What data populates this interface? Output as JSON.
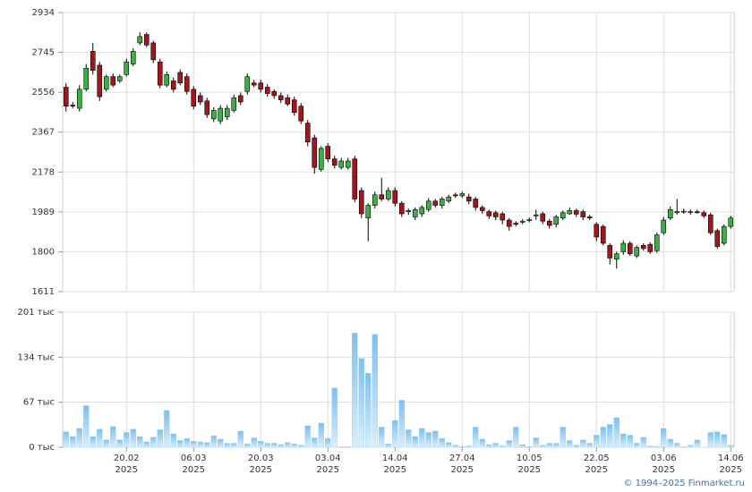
{
  "chart_data": [
    {
      "type": "candlestick",
      "categories": [
        null,
        null,
        null,
        null,
        null,
        null,
        null,
        null,
        null,
        "20.02\n2025",
        null,
        null,
        null,
        null,
        null,
        null,
        null,
        null,
        null,
        "06.03\n2025",
        null,
        null,
        null,
        null,
        null,
        null,
        null,
        null,
        null,
        "20.03\n2025",
        null,
        null,
        null,
        null,
        null,
        null,
        null,
        null,
        null,
        "03.04\n2025",
        null,
        null,
        null,
        null,
        null,
        null,
        null,
        null,
        null,
        "14.04\n2025",
        null,
        null,
        null,
        null,
        null,
        null,
        null,
        null,
        null,
        "27.04\n2025",
        null,
        null,
        null,
        null,
        null,
        null,
        null,
        null,
        null,
        "10.05\n2025",
        null,
        null,
        null,
        null,
        null,
        null,
        null,
        null,
        null,
        "22.05\n2025",
        null,
        null,
        null,
        null,
        null,
        null,
        null,
        null,
        null,
        "03.06\n2025",
        null,
        null,
        null,
        null,
        null,
        null,
        null,
        null,
        null,
        "14.06\n2025"
      ],
      "open": [
        2580,
        2495,
        2480,
        2570,
        2750,
        2684,
        2570,
        2630,
        2610,
        2640,
        2690,
        2790,
        2830,
        2790,
        2700,
        2590,
        2610,
        2650,
        2630,
        2570,
        2540,
        2515,
        2430,
        2420,
        2440,
        2470,
        2540,
        2560,
        2600,
        2600,
        2580,
        2560,
        2540,
        2530,
        2520,
        2490,
        2410,
        2340,
        2190,
        2300,
        2240,
        2200,
        2200,
        2240,
        2090,
        1960,
        2020,
        2070,
        2050,
        2090,
        2030,
        1990,
        1965,
        1980,
        2000,
        2040,
        2020,
        2040,
        2070,
        2065,
        2060,
        2050,
        2010,
        1990,
        1985,
        1980,
        1950,
        1935,
        1940,
        1950,
        1970,
        1980,
        1945,
        1930,
        1960,
        1980,
        1995,
        1990,
        1965,
        1930,
        1920,
        1830,
        1765,
        1800,
        1840,
        1780,
        1830,
        1835,
        1805,
        1890,
        1960,
        1985,
        1990,
        1988,
        1990,
        1985,
        1975,
        1900,
        1840,
        1920
      ],
      "high": [
        2600,
        2510,
        2590,
        2690,
        2790,
        2700,
        2640,
        2645,
        2640,
        2715,
        2765,
        2840,
        2840,
        2800,
        2715,
        2655,
        2625,
        2665,
        2645,
        2585,
        2555,
        2530,
        2485,
        2495,
        2495,
        2545,
        2555,
        2645,
        2615,
        2615,
        2595,
        2570,
        2555,
        2545,
        2535,
        2505,
        2425,
        2355,
        2300,
        2315,
        2255,
        2245,
        2245,
        2255,
        2105,
        2030,
        2085,
        2150,
        2105,
        2105,
        2040,
        2005,
        2010,
        2020,
        2055,
        2050,
        2060,
        2070,
        2080,
        2085,
        2075,
        2060,
        2020,
        2000,
        1995,
        1990,
        1960,
        1945,
        1955,
        1962,
        2000,
        1990,
        1955,
        1975,
        1995,
        2010,
        2005,
        2000,
        1975,
        1940,
        1930,
        1840,
        1800,
        1855,
        1850,
        1830,
        1840,
        1845,
        1890,
        1965,
        2015,
        2050,
        2005,
        2000,
        2000,
        1995,
        1985,
        1910,
        1930,
        1970
      ],
      "low": [
        2465,
        2480,
        2465,
        2560,
        2640,
        2515,
        2560,
        2580,
        2600,
        2630,
        2680,
        2780,
        2770,
        2695,
        2575,
        2580,
        2555,
        2590,
        2545,
        2475,
        2495,
        2435,
        2415,
        2405,
        2425,
        2460,
        2495,
        2545,
        2580,
        2555,
        2535,
        2525,
        2505,
        2490,
        2445,
        2405,
        2300,
        2170,
        2180,
        2225,
        2195,
        2190,
        2190,
        2035,
        1960,
        1850,
        2005,
        2040,
        2040,
        2015,
        1965,
        1975,
        1950,
        1965,
        1990,
        2010,
        2005,
        2030,
        2055,
        2055,
        2025,
        1995,
        1980,
        1955,
        1950,
        1930,
        1900,
        1920,
        1930,
        1940,
        1950,
        1930,
        1910,
        1915,
        1950,
        1975,
        1965,
        1950,
        1950,
        1850,
        1830,
        1740,
        1720,
        1785,
        1780,
        1770,
        1805,
        1790,
        1795,
        1880,
        1950,
        1975,
        1980,
        1975,
        1980,
        1960,
        1880,
        1815,
        1830,
        1910
      ],
      "close": [
        2490,
        2490,
        2570,
        2670,
        2660,
        2535,
        2630,
        2590,
        2630,
        2700,
        2750,
        2820,
        2780,
        2710,
        2590,
        2640,
        2570,
        2600,
        2560,
        2490,
        2510,
        2450,
        2470,
        2480,
        2480,
        2530,
        2510,
        2630,
        2590,
        2570,
        2550,
        2540,
        2520,
        2500,
        2460,
        2420,
        2320,
        2200,
        2290,
        2240,
        2210,
        2230,
        2230,
        2050,
        1980,
        2020,
        2070,
        2050,
        2090,
        2030,
        1980,
        1995,
        2000,
        2010,
        2040,
        2020,
        2050,
        2060,
        2065,
        2075,
        2040,
        2010,
        1995,
        1970,
        1965,
        1950,
        1920,
        1930,
        1945,
        1952,
        1975,
        1945,
        1925,
        1965,
        1985,
        1995,
        1978,
        1965,
        1960,
        1870,
        1840,
        1770,
        1790,
        1840,
        1790,
        1820,
        1815,
        1800,
        1880,
        1950,
        2000,
        1990,
        1992,
        1990,
        1985,
        1970,
        1890,
        1825,
        1920,
        1960
      ],
      "up_color": "#3cb043",
      "down_color": "#a3161b",
      "ylim": [
        1611,
        2934
      ],
      "yticks": [
        1611,
        1800,
        1989,
        2178,
        2367,
        2556,
        2745,
        2934
      ],
      "grid": true
    },
    {
      "type": "bar",
      "values": [
        23,
        16,
        28,
        62,
        16,
        27,
        11,
        31,
        11,
        22,
        27,
        16,
        8,
        15,
        26,
        55,
        20,
        10,
        13,
        9,
        8,
        7,
        17,
        12,
        6,
        6,
        24,
        5,
        14,
        9,
        6,
        6,
        4,
        7,
        5,
        3,
        32,
        14,
        36,
        13,
        88,
        1,
        1,
        170,
        132,
        110,
        168,
        30,
        5,
        40,
        70,
        26,
        16,
        28,
        22,
        24,
        13,
        7,
        3,
        1,
        2,
        30,
        12,
        4,
        6,
        2,
        10,
        30,
        4,
        1,
        14,
        3,
        6,
        6,
        30,
        10,
        3,
        11,
        6,
        18,
        30,
        34,
        44,
        20,
        18,
        6,
        15,
        2,
        1,
        28,
        12,
        6,
        1,
        3,
        11,
        0,
        22,
        23,
        19,
        3
      ],
      "color": "#8ccbf2",
      "ylim": [
        0,
        201
      ],
      "yticks": [
        {
          "value": 0,
          "label": "0 тыс"
        },
        {
          "value": 67,
          "label": "67 тыс"
        },
        {
          "value": 134,
          "label": "134 тыс"
        },
        {
          "value": 201,
          "label": "201 тыс"
        }
      ],
      "grid": true
    }
  ],
  "footer": "© 1994–2025 Finmarket.ru"
}
